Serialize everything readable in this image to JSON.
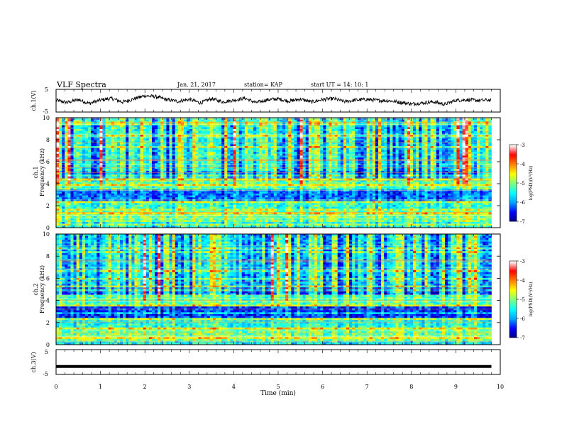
{
  "header": {
    "title": "VLF Spectra",
    "date": "Jan. 21, 2017",
    "station": "station= KAP",
    "start": "start  UT =   14: 10: 1"
  },
  "chart_data": [
    {
      "type": "line",
      "panel": "ch1-waveform",
      "ylabel": "ch.1(V)",
      "ylim": [
        -5,
        5
      ],
      "yticks": [
        "5",
        "-5"
      ],
      "xlim": [
        0,
        10
      ],
      "note": "Noisy waveform centred near 0 V, amplitude roughly ±1.5 V",
      "x": [
        0,
        0.25,
        0.5,
        0.75,
        1,
        1.25,
        1.5,
        1.75,
        2,
        2.25,
        2.5,
        2.75,
        3,
        3.25,
        3.5,
        3.75,
        4,
        4.25,
        4.5,
        4.75,
        5,
        5.25,
        5.5,
        5.75,
        6,
        6.25,
        6.5,
        6.75,
        7,
        7.25,
        7.5,
        7.75,
        8,
        8.25,
        8.5,
        8.75,
        9,
        9.25,
        9.5,
        9.8
      ],
      "y": [
        0.2,
        -0.8,
        0.5,
        -1.2,
        0.3,
        1.0,
        -0.6,
        0.8,
        2.2,
        1.8,
        0.4,
        -0.3,
        0.6,
        -1.0,
        0.9,
        -0.5,
        0.2,
        1.1,
        -0.9,
        0.4,
        0.8,
        -0.2,
        0.7,
        -0.6,
        0.5,
        0.9,
        -0.4,
        0.3,
        0.6,
        0.1,
        0.0,
        -0.7,
        -1.4,
        -1.0,
        -0.5,
        -1.6,
        0.2,
        0.4,
        0.1,
        0.3
      ]
    },
    {
      "type": "heatmap",
      "panel": "ch1-spectrogram",
      "ylabel": "ch.1 Frequency (kHz)",
      "ylim": [
        0,
        10
      ],
      "yticks": [
        "0",
        "2",
        "4",
        "6",
        "8",
        "10"
      ],
      "xlim": [
        0,
        9.8
      ],
      "colorbar": {
        "label": "log(PSD)(V²/Hz)",
        "range": [
          -7,
          -3
        ],
        "ticks": [
          "-3",
          "-4",
          "-5",
          "-6",
          "-7"
        ]
      }
    },
    {
      "type": "heatmap",
      "panel": "ch2-spectrogram",
      "ylabel": "ch.2 Frequency (kHz)",
      "ylim": [
        0,
        10
      ],
      "yticks": [
        "0",
        "2",
        "4",
        "6",
        "8",
        "10"
      ],
      "xlim": [
        0,
        9.8
      ],
      "colorbar": {
        "label": "log(PSD)(V²/Hz)",
        "range": [
          -7,
          -3
        ],
        "ticks": [
          "-3",
          "-4",
          "-5",
          "-6",
          "-7"
        ]
      }
    },
    {
      "type": "line",
      "panel": "ch3-waveform",
      "ylabel": "ch.3(V)",
      "ylim": [
        -5,
        5
      ],
      "yticks": [
        "5",
        "-5"
      ],
      "xlim": [
        0,
        10
      ],
      "x": [
        0,
        9.8
      ],
      "y": [
        -1.8,
        -1.8
      ]
    }
  ],
  "xaxis": {
    "label": "Time (min)",
    "ticks": [
      "0",
      "1",
      "2",
      "3",
      "4",
      "5",
      "6",
      "7",
      "8",
      "9",
      "10"
    ]
  },
  "colors": {
    "colormap": [
      "#00007f",
      "#0000ff",
      "#00a0ff",
      "#00ffff",
      "#7fff7f",
      "#ffff00",
      "#ff8000",
      "#ff0000",
      "#ffffff"
    ]
  }
}
